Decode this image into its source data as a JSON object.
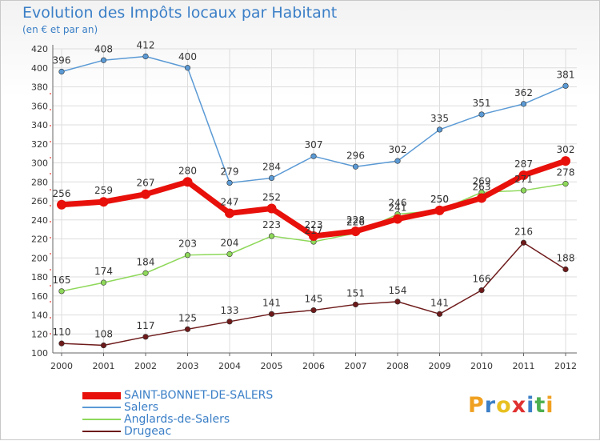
{
  "header": {
    "title": "Evolution des Impôts locaux par Habitant",
    "subtitle": "(en € et par an)"
  },
  "logo": {
    "text": "Proxiti",
    "letters": [
      "P",
      "r",
      "o",
      "x",
      "i",
      "t",
      "i"
    ],
    "colors": [
      "#f0a020",
      "#3b7fc7",
      "#e8c020",
      "#e03030",
      "#3b7fc7",
      "#4caf50",
      "#f0a020"
    ]
  },
  "chart_data": {
    "type": "line",
    "title": "Evolution des Impôts locaux par Habitant",
    "subtitle": "(en € et par an)",
    "xlabel": "",
    "ylabel": "",
    "categories": [
      "2000",
      "2001",
      "2002",
      "2003",
      "2004",
      "2005",
      "2006",
      "2007",
      "2008",
      "2009",
      "2010",
      "2011",
      "2012"
    ],
    "ylim": [
      100,
      420
    ],
    "yticks": [
      100,
      120,
      140,
      160,
      180,
      200,
      220,
      240,
      260,
      280,
      300,
      320,
      340,
      360,
      380,
      400,
      420
    ],
    "grid": true,
    "legend_position": "bottom-left",
    "series": [
      {
        "name": "SAINT-BONNET-DE-SALERS",
        "color": "#e8100a",
        "emphasis": true,
        "values": [
          256,
          259,
          267,
          280,
          247,
          252,
          223,
          228,
          241,
          250,
          263,
          287,
          302
        ],
        "labels": [
          "256",
          "259",
          "267",
          "280",
          "247",
          "252",
          "223",
          "228",
          "241",
          "250",
          "263",
          "287",
          "302"
        ]
      },
      {
        "name": "Salers",
        "color": "#5b9ad5",
        "values": [
          396,
          408,
          412,
          400,
          279,
          284,
          307,
          296,
          302,
          335,
          351,
          362,
          381
        ],
        "labels": [
          "396",
          "408",
          "412",
          "400",
          "279",
          "284",
          "307",
          "296",
          "302",
          "335",
          "351",
          "362",
          "381"
        ]
      },
      {
        "name": "Anglards-de-Salers",
        "color": "#8ed85a",
        "values": [
          165,
          174,
          184,
          203,
          204,
          223,
          217,
          226,
          246,
          250,
          269,
          271,
          278
        ],
        "labels": [
          "165",
          "174",
          "184",
          "203",
          "204",
          "223",
          "217",
          "226",
          "246",
          "250",
          "269",
          "271",
          "278"
        ]
      },
      {
        "name": "Drugeac",
        "color": "#6e1a1a",
        "values": [
          110,
          108,
          117,
          125,
          133,
          141,
          145,
          151,
          154,
          141,
          166,
          216,
          188
        ],
        "labels": [
          "110",
          "108",
          "117",
          "125",
          "133",
          "141",
          "145",
          "151",
          "154",
          "141",
          "166",
          "216",
          "188"
        ]
      }
    ]
  }
}
